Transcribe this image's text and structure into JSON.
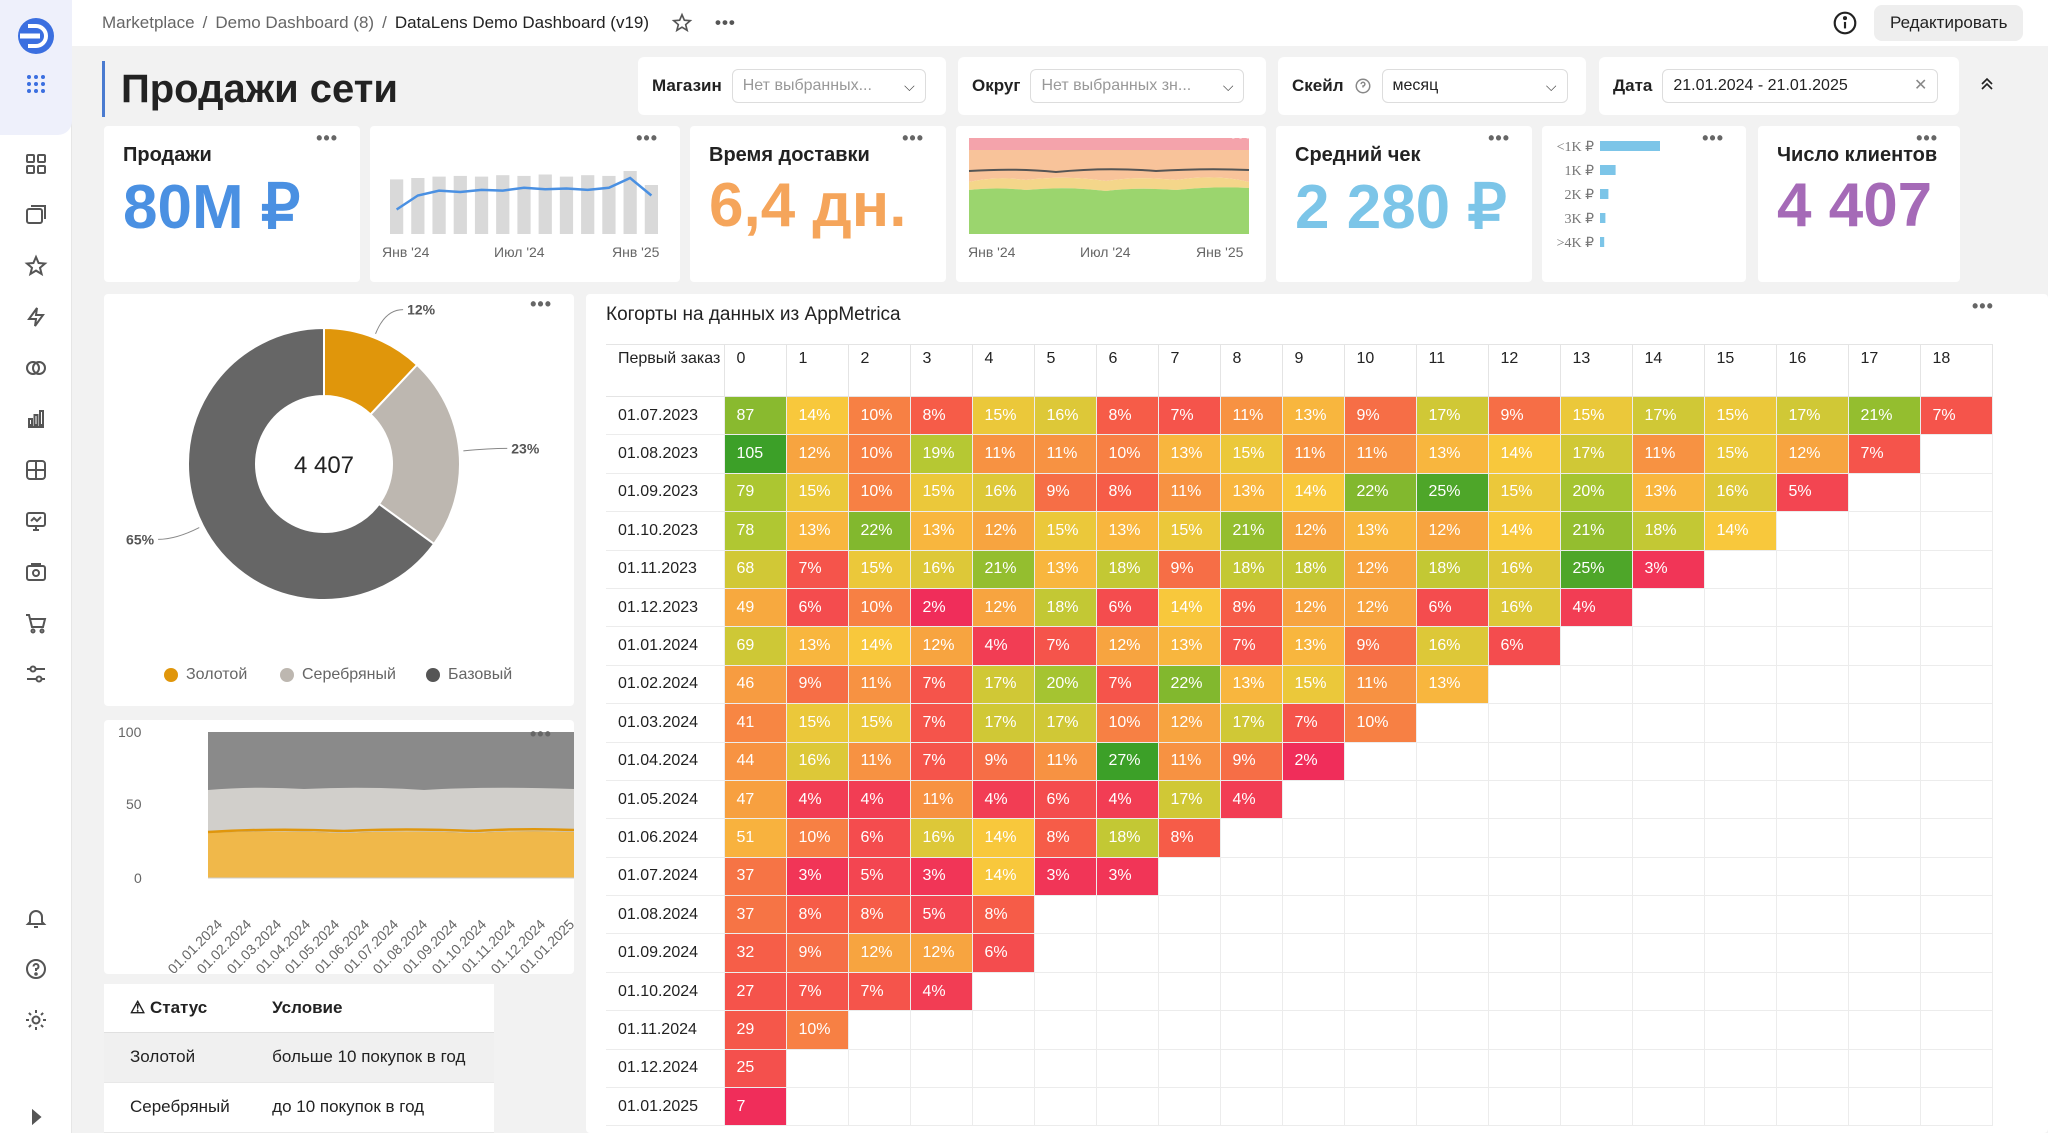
{
  "header": {
    "breadcrumb": [
      "Marketplace",
      "Demo Dashboard (8)",
      "DataLens Demo Dashboard (v19)"
    ],
    "sep": "/",
    "edit_button": "Редактировать"
  },
  "page": {
    "title": "Продажи сети"
  },
  "filters": {
    "shop": {
      "label": "Магазин",
      "placeholder": "Нет выбранных..."
    },
    "district": {
      "label": "Округ",
      "placeholder": "Нет выбранных зн..."
    },
    "scale": {
      "label": "Скейл",
      "value": "месяц"
    },
    "date": {
      "label": "Дата",
      "value": "21.01.2024 - 21.01.2025"
    }
  },
  "kpis": {
    "sales": {
      "title": "Продажи",
      "value": "80M ₽",
      "color": "#4a90e2"
    },
    "delivery": {
      "title": "Время доставки",
      "value": "6,4 дн.",
      "color": "#f5a55b"
    },
    "avg_check": {
      "title": "Средний чек",
      "value": "2 280 ₽",
      "color": "#7cc5e8"
    },
    "clients": {
      "title": "Число клиентов",
      "value": "4 407",
      "color": "#a56ab7"
    }
  },
  "mini_charts": {
    "sales_trend": {
      "x_labels": [
        "Янв '24",
        "Июл '24",
        "Янв '25"
      ],
      "bars": [
        0.78,
        0.8,
        0.82,
        0.83,
        0.82,
        0.84,
        0.83,
        0.85,
        0.82,
        0.84,
        0.83,
        0.9,
        0.7
      ],
      "line": [
        0.35,
        0.55,
        0.62,
        0.6,
        0.63,
        0.62,
        0.66,
        0.64,
        0.65,
        0.63,
        0.66,
        0.8,
        0.55
      ]
    },
    "delivery_trend": {
      "x_labels": [
        "Янв '24",
        "Июл '24",
        "Янв '25"
      ]
    },
    "check_distribution": {
      "categories": [
        "<1K ₽",
        "1K ₽",
        "2K ₽",
        "3K ₽",
        ">4K ₽"
      ],
      "values": [
        1.0,
        0.26,
        0.14,
        0.09,
        0.07
      ]
    }
  },
  "donut": {
    "center": "4 407",
    "slices": [
      {
        "name": "Золотой",
        "pct": 12,
        "label": "12%",
        "color": "#e0960b"
      },
      {
        "name": "Серебряный",
        "pct": 23,
        "label": "23%",
        "color": "#bdb7b0"
      },
      {
        "name": "Базовый",
        "pct": 65,
        "label": "65%",
        "color": "#666666"
      }
    ]
  },
  "area_chart": {
    "y_ticks": [
      "100",
      "50",
      "0"
    ],
    "x_labels": [
      "01.01.2024",
      "01.02.2024",
      "01.03.2024",
      "01.04.2024",
      "01.05.2024",
      "01.06.2024",
      "01.07.2024",
      "01.08.2024",
      "01.09.2024",
      "01.10.2024",
      "01.11.2024",
      "01.12.2024",
      "01.01.2025"
    ]
  },
  "status_table": {
    "headers": [
      "⚠ Статус",
      "Условие"
    ],
    "rows": [
      [
        "Золотой",
        "больше 10 покупок в год"
      ],
      [
        "Серебряный",
        "до 10 покупок в год"
      ]
    ]
  },
  "cohort": {
    "title": "Когорты на данных из AppMetrica",
    "corner": "Первый заказ",
    "columns": [
      "0",
      "1",
      "2",
      "3",
      "4",
      "5",
      "6",
      "7",
      "8",
      "9",
      "10",
      "11",
      "12",
      "13",
      "14",
      "15",
      "16",
      "17",
      "18"
    ],
    "rows": [
      {
        "date": "01.07.2023",
        "v": [
          "87",
          "14%",
          "10%",
          "8%",
          "15%",
          "16%",
          "8%",
          "7%",
          "11%",
          "13%",
          "9%",
          "17%",
          "9%",
          "15%",
          "17%",
          "15%",
          "17%",
          "21%",
          "7%"
        ]
      },
      {
        "date": "01.08.2023",
        "v": [
          "105",
          "12%",
          "10%",
          "19%",
          "11%",
          "11%",
          "10%",
          "13%",
          "15%",
          "11%",
          "11%",
          "13%",
          "14%",
          "17%",
          "11%",
          "15%",
          "12%",
          "7%"
        ]
      },
      {
        "date": "01.09.2023",
        "v": [
          "79",
          "15%",
          "10%",
          "15%",
          "16%",
          "9%",
          "8%",
          "11%",
          "13%",
          "14%",
          "22%",
          "25%",
          "15%",
          "20%",
          "13%",
          "16%",
          "5%"
        ]
      },
      {
        "date": "01.10.2023",
        "v": [
          "78",
          "13%",
          "22%",
          "13%",
          "12%",
          "15%",
          "13%",
          "15%",
          "21%",
          "12%",
          "13%",
          "12%",
          "14%",
          "21%",
          "18%",
          "14%"
        ]
      },
      {
        "date": "01.11.2023",
        "v": [
          "68",
          "7%",
          "15%",
          "16%",
          "21%",
          "13%",
          "18%",
          "9%",
          "18%",
          "18%",
          "12%",
          "18%",
          "16%",
          "25%",
          "3%"
        ]
      },
      {
        "date": "01.12.2023",
        "v": [
          "49",
          "6%",
          "10%",
          "2%",
          "12%",
          "18%",
          "6%",
          "14%",
          "8%",
          "12%",
          "12%",
          "6%",
          "16%",
          "4%"
        ]
      },
      {
        "date": "01.01.2024",
        "v": [
          "69",
          "13%",
          "14%",
          "12%",
          "4%",
          "7%",
          "12%",
          "13%",
          "7%",
          "13%",
          "9%",
          "16%",
          "6%"
        ]
      },
      {
        "date": "01.02.2024",
        "v": [
          "46",
          "9%",
          "11%",
          "7%",
          "17%",
          "20%",
          "7%",
          "22%",
          "13%",
          "15%",
          "11%",
          "13%"
        ]
      },
      {
        "date": "01.03.2024",
        "v": [
          "41",
          "15%",
          "15%",
          "7%",
          "17%",
          "17%",
          "10%",
          "12%",
          "17%",
          "7%",
          "10%"
        ]
      },
      {
        "date": "01.04.2024",
        "v": [
          "44",
          "16%",
          "11%",
          "7%",
          "9%",
          "11%",
          "27%",
          "11%",
          "9%",
          "2%"
        ]
      },
      {
        "date": "01.05.2024",
        "v": [
          "47",
          "4%",
          "4%",
          "11%",
          "4%",
          "6%",
          "4%",
          "17%",
          "4%"
        ]
      },
      {
        "date": "01.06.2024",
        "v": [
          "51",
          "10%",
          "6%",
          "16%",
          "14%",
          "8%",
          "18%",
          "8%"
        ]
      },
      {
        "date": "01.07.2024",
        "v": [
          "37",
          "3%",
          "5%",
          "3%",
          "14%",
          "3%",
          "3%"
        ]
      },
      {
        "date": "01.08.2024",
        "v": [
          "37",
          "8%",
          "8%",
          "5%",
          "8%"
        ]
      },
      {
        "date": "01.09.2024",
        "v": [
          "32",
          "9%",
          "12%",
          "12%",
          "6%"
        ]
      },
      {
        "date": "01.10.2024",
        "v": [
          "27",
          "7%",
          "7%",
          "4%"
        ]
      },
      {
        "date": "01.11.2024",
        "v": [
          "29",
          "10%"
        ]
      },
      {
        "date": "01.12.2024",
        "v": [
          "25"
        ]
      },
      {
        "date": "01.01.2025",
        "v": [
          "7"
        ]
      }
    ]
  }
}
